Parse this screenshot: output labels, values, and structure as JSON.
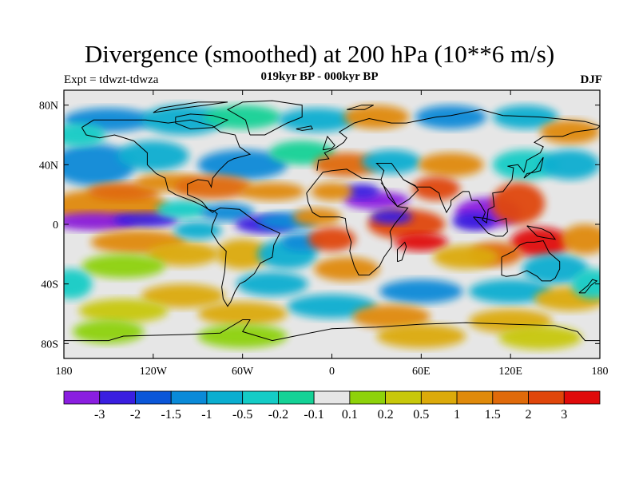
{
  "header": {
    "title": "Divergence (smoothed) at 200 hPa (10**6 m/s)",
    "left_label": "Expt = tdwzt-tdwza",
    "center_label": "019kyr BP - 000kyr BP",
    "right_label": "DJF"
  },
  "map": {
    "lon_ticks": [
      {
        "value": -180,
        "label": "180"
      },
      {
        "value": -120,
        "label": "120W"
      },
      {
        "value": -60,
        "label": "60W"
      },
      {
        "value": 0,
        "label": "0"
      },
      {
        "value": 60,
        "label": "60E"
      },
      {
        "value": 120,
        "label": "120E"
      },
      {
        "value": 180,
        "label": "180"
      }
    ],
    "lat_ticks": [
      {
        "value": 80,
        "label": "80N"
      },
      {
        "value": 40,
        "label": "40N"
      },
      {
        "value": 0,
        "label": "0"
      },
      {
        "value": -40,
        "label": "40S"
      },
      {
        "value": -80,
        "label": "80S"
      }
    ],
    "lon_range": [
      -180,
      180
    ],
    "lat_range": [
      -90,
      90
    ],
    "background_color": "#e6e6e6",
    "coastline_color": "#000000"
  },
  "colorbar": {
    "colors": [
      "#8a1ee0",
      "#3a1ee0",
      "#0a56d8",
      "#0a8ad8",
      "#0aaed0",
      "#14ccc6",
      "#14d296",
      "#e6e6e6",
      "#8ed20a",
      "#c8c80a",
      "#dcaa0a",
      "#e08a0a",
      "#e06a0a",
      "#e0460a",
      "#e00a0a"
    ],
    "labels": [
      "-3",
      "-2",
      "-1.5",
      "-1",
      "-0.5",
      "-0.2",
      "-0.1",
      "0.1",
      "0.2",
      "0.5",
      "1",
      "1.5",
      "2",
      "3"
    ]
  }
}
